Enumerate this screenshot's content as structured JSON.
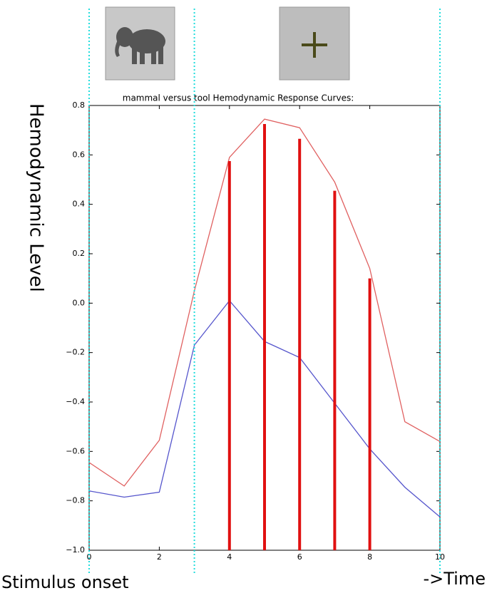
{
  "chart_data": {
    "type": "line",
    "title": "mammal versus tool Hemodynamic Response Curves:",
    "y_label": "Hemodynamic Level",
    "annotations": [
      "Stimulus onset",
      "->Time"
    ],
    "x": [
      0,
      1,
      2,
      3,
      4,
      5,
      6,
      7,
      8,
      9,
      10
    ],
    "series": [
      {
        "color": "#e06060",
        "values": [
          -0.645,
          -0.74,
          -0.555,
          0.05,
          0.59,
          0.745,
          0.71,
          0.49,
          0.14,
          -0.48,
          -0.56
        ]
      },
      {
        "color": "#5555cc",
        "values": [
          -0.76,
          -0.785,
          -0.765,
          -0.17,
          0.01,
          -0.155,
          -0.22,
          -0.405,
          -0.59,
          -0.745,
          -0.865
        ]
      }
    ],
    "bars": {
      "color": "#e01010",
      "x": [
        4,
        5,
        6,
        7,
        8
      ],
      "values": [
        0.575,
        0.725,
        0.665,
        0.455,
        0.1
      ]
    },
    "vlines": {
      "color": "#22dddd",
      "x": [
        0,
        3,
        10
      ]
    },
    "xlim": [
      0,
      10
    ],
    "xticks": [
      0,
      2,
      4,
      6,
      8,
      10
    ],
    "ylim": [
      -1.0,
      0.8
    ],
    "yticks": [
      0.8,
      0.6,
      0.4,
      0.2,
      {
        "value": 0,
        "label": "0.0"
      },
      {
        "value": -0.2,
        "label": "−0.2"
      },
      {
        "value": -0.4,
        "label": "−0.4"
      },
      {
        "value": -0.6,
        "label": "−0.6"
      },
      {
        "value": -0.8,
        "label": "−0.8"
      },
      {
        "value": -1.0,
        "label": "−1.0"
      }
    ]
  }
}
